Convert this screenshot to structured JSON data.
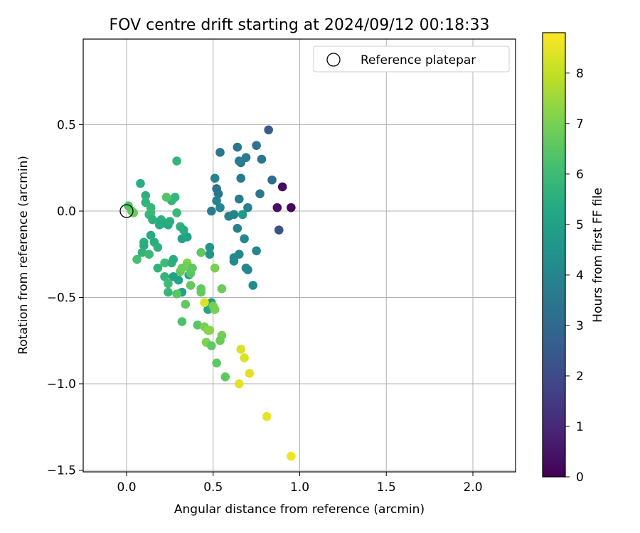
{
  "chart_data": {
    "type": "scatter",
    "title": "FOV centre drift starting at 2024/09/12 00:18:33",
    "xlabel": "Angular distance from reference (arcmin)",
    "ylabel": "Rotation from reference (arcmin)",
    "xlim": [
      -0.25,
      2.25
    ],
    "ylim": [
      -1.52,
      0.99
    ],
    "xticks": [
      "0.0",
      "0.5",
      "1.0",
      "1.5",
      "2.0"
    ],
    "yticks": [
      "−1.5",
      "−1.0",
      "−0.5",
      "0.0",
      "0.5"
    ],
    "grid": true,
    "legend": {
      "position": "top-right",
      "label": "Reference platepar"
    },
    "reference_point": {
      "x": 0.0,
      "y": 0.0
    },
    "colorbar": {
      "label": "Hours from first FF file",
      "min": 0,
      "max": 8.8,
      "ticks": [
        "0",
        "1",
        "2",
        "3",
        "4",
        "5",
        "6",
        "7",
        "8"
      ],
      "colormap": "viridis"
    },
    "points": [
      {
        "x": 0.9,
        "y": 0.14,
        "h": 0.3
      },
      {
        "x": 0.95,
        "y": 0.02,
        "h": 0.2
      },
      {
        "x": 0.87,
        "y": 0.02,
        "h": 0.4
      },
      {
        "x": 0.88,
        "y": -0.11,
        "h": 2.2
      },
      {
        "x": 0.82,
        "y": 0.47,
        "h": 2.5
      },
      {
        "x": 0.84,
        "y": 0.18,
        "h": 3.2
      },
      {
        "x": 0.75,
        "y": 0.38,
        "h": 3.3
      },
      {
        "x": 0.78,
        "y": 0.3,
        "h": 3.4
      },
      {
        "x": 0.64,
        "y": 0.37,
        "h": 3.5
      },
      {
        "x": 0.69,
        "y": 0.31,
        "h": 3.6
      },
      {
        "x": 0.66,
        "y": 0.28,
        "h": 3.6
      },
      {
        "x": 0.54,
        "y": 0.34,
        "h": 3.5
      },
      {
        "x": 0.65,
        "y": 0.29,
        "h": 3.7
      },
      {
        "x": 0.66,
        "y": 0.19,
        "h": 3.6
      },
      {
        "x": 0.77,
        "y": 0.1,
        "h": 3.5
      },
      {
        "x": 0.65,
        "y": 0.07,
        "h": 3.7
      },
      {
        "x": 0.7,
        "y": 0.02,
        "h": 3.8
      },
      {
        "x": 0.52,
        "y": 0.13,
        "h": 3.3
      },
      {
        "x": 0.53,
        "y": 0.1,
        "h": 3.4
      },
      {
        "x": 0.51,
        "y": 0.19,
        "h": 3.9
      },
      {
        "x": 0.52,
        "y": 0.06,
        "h": 3.9
      },
      {
        "x": 0.54,
        "y": 0.02,
        "h": 4.0
      },
      {
        "x": 0.49,
        "y": 0.0,
        "h": 3.7
      },
      {
        "x": 0.59,
        "y": -0.03,
        "h": 3.8
      },
      {
        "x": 0.62,
        "y": -0.02,
        "h": 3.9
      },
      {
        "x": 0.67,
        "y": -0.02,
        "h": 4.8
      },
      {
        "x": 0.64,
        "y": -0.1,
        "h": 3.8
      },
      {
        "x": 0.68,
        "y": -0.16,
        "h": 4.0
      },
      {
        "x": 0.75,
        "y": -0.23,
        "h": 4.0
      },
      {
        "x": 0.65,
        "y": -0.25,
        "h": 4.1
      },
      {
        "x": 0.62,
        "y": -0.27,
        "h": 4.2
      },
      {
        "x": 0.62,
        "y": -0.29,
        "h": 4.2
      },
      {
        "x": 0.69,
        "y": -0.33,
        "h": 4.0
      },
      {
        "x": 0.7,
        "y": -0.34,
        "h": 4.0
      },
      {
        "x": 0.73,
        "y": -0.43,
        "h": 4.3
      },
      {
        "x": 0.48,
        "y": -0.21,
        "h": 4.5
      },
      {
        "x": 0.48,
        "y": -0.25,
        "h": 4.6
      },
      {
        "x": 0.32,
        "y": -0.16,
        "h": 5.0
      },
      {
        "x": 0.35,
        "y": -0.15,
        "h": 5.1
      },
      {
        "x": 0.27,
        "y": -0.38,
        "h": 5.0
      },
      {
        "x": 0.3,
        "y": -0.4,
        "h": 5.1
      },
      {
        "x": 0.32,
        "y": -0.47,
        "h": 5.0
      },
      {
        "x": 0.36,
        "y": -0.37,
        "h": 5.2
      },
      {
        "x": 0.47,
        "y": -0.57,
        "h": 5.2
      },
      {
        "x": 0.49,
        "y": -0.53,
        "h": 4.8
      },
      {
        "x": 0.29,
        "y": 0.29,
        "h": 5.8
      },
      {
        "x": 0.08,
        "y": 0.16,
        "h": 5.5
      },
      {
        "x": 0.11,
        "y": 0.09,
        "h": 5.6
      },
      {
        "x": 0.11,
        "y": 0.05,
        "h": 5.7
      },
      {
        "x": 0.14,
        "y": 0.02,
        "h": 5.8
      },
      {
        "x": 0.13,
        "y": -0.02,
        "h": 5.8
      },
      {
        "x": 0.14,
        "y": -0.01,
        "h": 5.9
      },
      {
        "x": 0.15,
        "y": -0.05,
        "h": 5.6
      },
      {
        "x": 0.2,
        "y": -0.05,
        "h": 5.6
      },
      {
        "x": 0.22,
        "y": -0.07,
        "h": 5.5
      },
      {
        "x": 0.19,
        "y": -0.08,
        "h": 5.4
      },
      {
        "x": 0.24,
        "y": -0.08,
        "h": 5.3
      },
      {
        "x": 0.25,
        "y": -0.06,
        "h": 5.5
      },
      {
        "x": 0.26,
        "y": 0.06,
        "h": 5.7
      },
      {
        "x": 0.28,
        "y": 0.08,
        "h": 5.8
      },
      {
        "x": 0.23,
        "y": 0.08,
        "h": 6.4
      },
      {
        "x": 0.29,
        "y": -0.01,
        "h": 5.9
      },
      {
        "x": 0.31,
        "y": -0.09,
        "h": 5.6
      },
      {
        "x": 0.33,
        "y": -0.11,
        "h": 5.4
      },
      {
        "x": 0.14,
        "y": -0.14,
        "h": 5.4
      },
      {
        "x": 0.1,
        "y": -0.18,
        "h": 5.6
      },
      {
        "x": 0.1,
        "y": -0.2,
        "h": 5.5
      },
      {
        "x": 0.09,
        "y": -0.24,
        "h": 5.7
      },
      {
        "x": 0.16,
        "y": -0.18,
        "h": 5.5
      },
      {
        "x": 0.18,
        "y": -0.21,
        "h": 5.6
      },
      {
        "x": 0.13,
        "y": -0.25,
        "h": 5.9
      },
      {
        "x": 0.06,
        "y": -0.28,
        "h": 6.2
      },
      {
        "x": 0.18,
        "y": -0.33,
        "h": 5.7
      },
      {
        "x": 0.22,
        "y": -0.3,
        "h": 6.0
      },
      {
        "x": 0.26,
        "y": -0.3,
        "h": 5.6
      },
      {
        "x": 0.27,
        "y": -0.28,
        "h": 5.5
      },
      {
        "x": 0.22,
        "y": -0.38,
        "h": 5.7
      },
      {
        "x": 0.24,
        "y": -0.42,
        "h": 6.0
      },
      {
        "x": 0.24,
        "y": -0.47,
        "h": 5.8
      },
      {
        "x": 0.29,
        "y": -0.48,
        "h": 6.5
      },
      {
        "x": 0.31,
        "y": -0.35,
        "h": 6.6
      },
      {
        "x": 0.32,
        "y": -0.33,
        "h": 6.8
      },
      {
        "x": 0.35,
        "y": -0.3,
        "h": 7.2
      },
      {
        "x": 0.35,
        "y": -0.32,
        "h": 6.9
      },
      {
        "x": 0.37,
        "y": -0.36,
        "h": 6.5
      },
      {
        "x": 0.38,
        "y": -0.33,
        "h": 6.6
      },
      {
        "x": 0.37,
        "y": -0.43,
        "h": 6.7
      },
      {
        "x": 0.34,
        "y": -0.54,
        "h": 6.6
      },
      {
        "x": 0.32,
        "y": -0.64,
        "h": 6.3
      },
      {
        "x": 0.43,
        "y": -0.24,
        "h": 6.6
      },
      {
        "x": 0.43,
        "y": -0.45,
        "h": 6.6
      },
      {
        "x": 0.43,
        "y": -0.47,
        "h": 6.7
      },
      {
        "x": 0.51,
        "y": -0.33,
        "h": 7.0
      },
      {
        "x": 0.55,
        "y": -0.45,
        "h": 6.8
      },
      {
        "x": 0.45,
        "y": -0.53,
        "h": 8.3
      },
      {
        "x": 0.5,
        "y": -0.55,
        "h": 6.9
      },
      {
        "x": 0.51,
        "y": -0.57,
        "h": 7.0
      },
      {
        "x": 0.41,
        "y": -0.66,
        "h": 6.5
      },
      {
        "x": 0.45,
        "y": -0.67,
        "h": 7.0
      },
      {
        "x": 0.47,
        "y": -0.69,
        "h": 7.1
      },
      {
        "x": 0.48,
        "y": -0.69,
        "h": 7.2
      },
      {
        "x": 0.55,
        "y": -0.72,
        "h": 6.9
      },
      {
        "x": 0.54,
        "y": -0.75,
        "h": 6.8
      },
      {
        "x": 0.46,
        "y": -0.76,
        "h": 7.1
      },
      {
        "x": 0.49,
        "y": -0.78,
        "h": 6.6
      },
      {
        "x": 0.52,
        "y": -0.88,
        "h": 6.6
      },
      {
        "x": 0.57,
        "y": -0.96,
        "h": 6.6
      },
      {
        "x": 0.66,
        "y": -0.8,
        "h": 8.3
      },
      {
        "x": 0.68,
        "y": -0.85,
        "h": 8.3
      },
      {
        "x": 0.71,
        "y": -0.94,
        "h": 8.4
      },
      {
        "x": 0.65,
        "y": -1.0,
        "h": 8.4
      },
      {
        "x": 0.81,
        "y": -1.19,
        "h": 8.5
      },
      {
        "x": 0.95,
        "y": -1.42,
        "h": 8.6
      },
      {
        "x": 0.01,
        "y": 0.03,
        "h": 6.4
      },
      {
        "x": 0.03,
        "y": 0.0,
        "h": 6.5
      },
      {
        "x": 0.04,
        "y": -0.01,
        "h": 6.8
      }
    ]
  }
}
